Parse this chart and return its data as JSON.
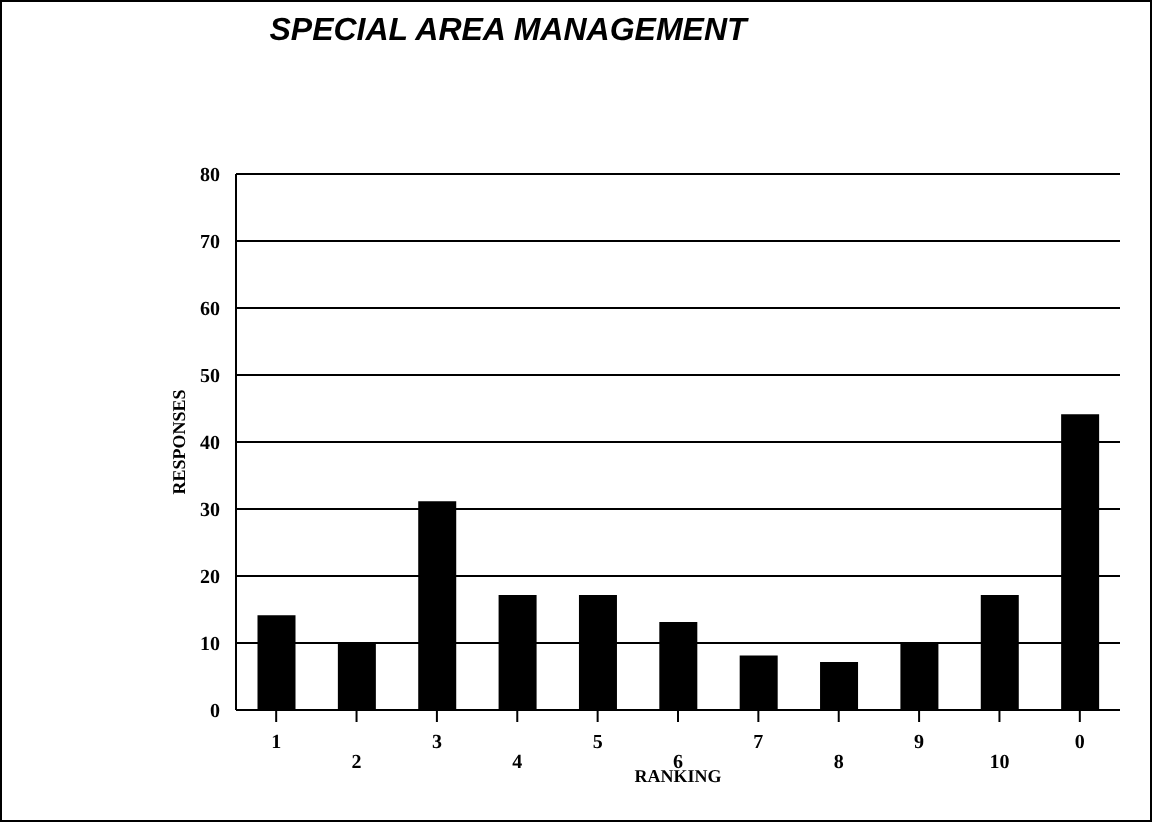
{
  "chart_data": {
    "type": "bar",
    "title": "SPECIAL AREA MANAGEMENT",
    "xlabel": "RANKING",
    "ylabel": "RESPONSES",
    "categories": [
      "1",
      "2",
      "3",
      "4",
      "5",
      "6",
      "7",
      "8",
      "9",
      "10",
      "0"
    ],
    "values": [
      14,
      10,
      31,
      17,
      17,
      13,
      8,
      7,
      10,
      17,
      44
    ],
    "color": "#000000",
    "ylim": [
      0,
      80
    ],
    "yticks": [
      0,
      10,
      20,
      30,
      40,
      50,
      60,
      70,
      80
    ],
    "grid": "y"
  }
}
